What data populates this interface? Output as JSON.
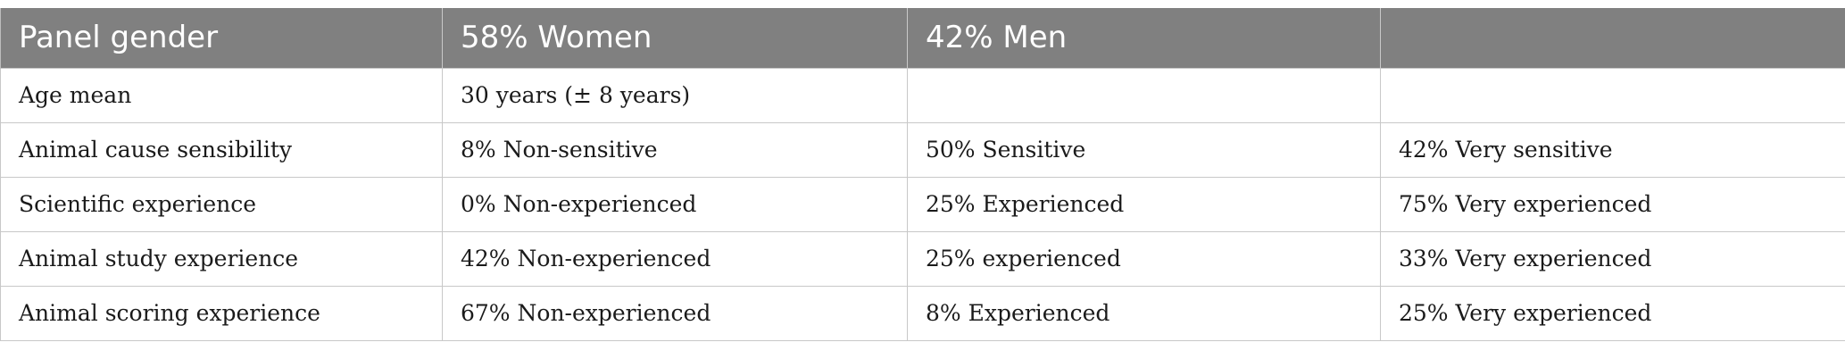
{
  "table": {
    "header": [
      "Panel gender",
      "58% Women",
      "42% Men",
      ""
    ],
    "rows": [
      [
        "Age mean",
        "30 years (± 8 years)",
        "",
        ""
      ],
      [
        "Animal cause sensibility",
        "8% Non-sensitive",
        "50% Sensitive",
        "42% Very sensitive"
      ],
      [
        "Scientific experience",
        "0% Non-experienced",
        "25% Experienced",
        "75% Very experienced"
      ],
      [
        "Animal study experience",
        "42% Non-experienced",
        "25% experienced",
        "33% Very experienced"
      ],
      [
        "Animal scoring experience",
        "67% Non-experienced",
        "8% Experienced",
        "25% Very experienced"
      ]
    ]
  },
  "colors": {
    "header_background": "#808080",
    "header_text": "#ffffff",
    "border": "#c8c8c8",
    "body_text": "#1a1a1a"
  }
}
